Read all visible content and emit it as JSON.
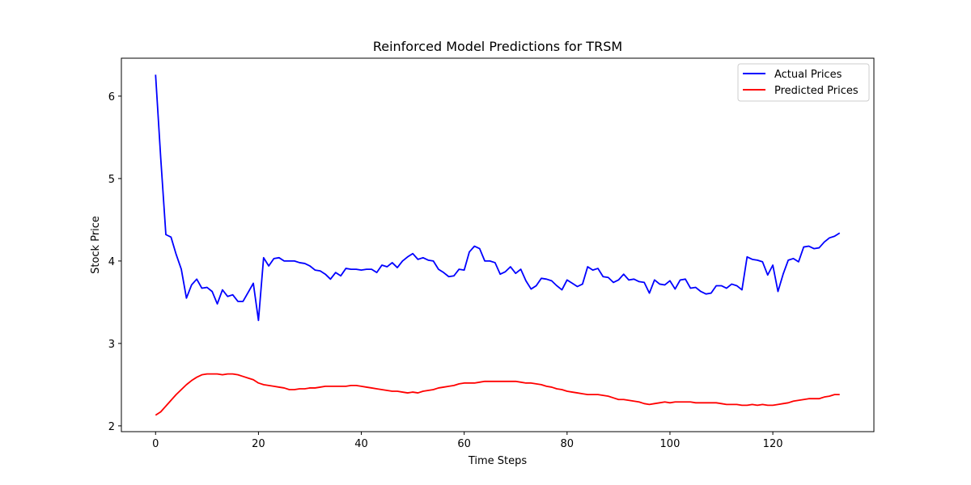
{
  "chart_data": {
    "type": "line",
    "title": "Reinforced Model Predictions for TRSM",
    "xlabel": "Time Steps",
    "ylabel": "Stock Price",
    "xlim": [
      -6.65,
      139.65
    ],
    "ylim": [
      1.93,
      6.46
    ],
    "xticks": [
      0,
      20,
      40,
      60,
      80,
      100,
      120
    ],
    "yticks": [
      2,
      3,
      4,
      5,
      6
    ],
    "grid": false,
    "legend_position": "top-right",
    "series": [
      {
        "name": "Actual Prices",
        "color": "#0000ff",
        "values": [
          6.26,
          5.25,
          4.32,
          4.29,
          4.08,
          3.9,
          3.55,
          3.71,
          3.78,
          3.67,
          3.68,
          3.63,
          3.48,
          3.65,
          3.57,
          3.59,
          3.51,
          3.51,
          3.62,
          3.73,
          3.28,
          4.04,
          3.94,
          4.03,
          4.04,
          4.0,
          4.0,
          4.0,
          3.98,
          3.97,
          3.94,
          3.89,
          3.88,
          3.84,
          3.78,
          3.86,
          3.82,
          3.91,
          3.9,
          3.9,
          3.89,
          3.9,
          3.9,
          3.86,
          3.95,
          3.93,
          3.98,
          3.92,
          4.0,
          4.05,
          4.09,
          4.02,
          4.04,
          4.01,
          4.0,
          3.9,
          3.86,
          3.81,
          3.82,
          3.9,
          3.89,
          4.11,
          4.18,
          4.15,
          4.0,
          4.0,
          3.98,
          3.84,
          3.87,
          3.93,
          3.85,
          3.9,
          3.76,
          3.66,
          3.7,
          3.79,
          3.78,
          3.76,
          3.7,
          3.65,
          3.77,
          3.73,
          3.69,
          3.72,
          3.93,
          3.89,
          3.91,
          3.81,
          3.8,
          3.74,
          3.77,
          3.84,
          3.77,
          3.78,
          3.75,
          3.74,
          3.61,
          3.77,
          3.72,
          3.71,
          3.76,
          3.66,
          3.77,
          3.78,
          3.67,
          3.68,
          3.63,
          3.6,
          3.61,
          3.7,
          3.7,
          3.67,
          3.72,
          3.7,
          3.65,
          4.05,
          4.02,
          4.01,
          3.99,
          3.83,
          3.95,
          3.63,
          3.84,
          4.01,
          4.03,
          3.99,
          4.17,
          4.18,
          4.15,
          4.16,
          4.23,
          4.28,
          4.3,
          4.34
        ]
      },
      {
        "name": "Predicted Prices",
        "color": "#ff0000",
        "values": [
          2.13,
          2.17,
          2.24,
          2.31,
          2.38,
          2.44,
          2.5,
          2.55,
          2.59,
          2.62,
          2.63,
          2.63,
          2.63,
          2.62,
          2.63,
          2.63,
          2.62,
          2.6,
          2.58,
          2.56,
          2.52,
          2.5,
          2.49,
          2.48,
          2.47,
          2.46,
          2.44,
          2.44,
          2.45,
          2.45,
          2.46,
          2.46,
          2.47,
          2.48,
          2.48,
          2.48,
          2.48,
          2.48,
          2.49,
          2.49,
          2.48,
          2.47,
          2.46,
          2.45,
          2.44,
          2.43,
          2.42,
          2.42,
          2.41,
          2.4,
          2.41,
          2.4,
          2.42,
          2.43,
          2.44,
          2.46,
          2.47,
          2.48,
          2.49,
          2.51,
          2.52,
          2.52,
          2.52,
          2.53,
          2.54,
          2.54,
          2.54,
          2.54,
          2.54,
          2.54,
          2.54,
          2.53,
          2.52,
          2.52,
          2.51,
          2.5,
          2.48,
          2.47,
          2.45,
          2.44,
          2.42,
          2.41,
          2.4,
          2.39,
          2.38,
          2.38,
          2.38,
          2.37,
          2.36,
          2.34,
          2.32,
          2.32,
          2.31,
          2.3,
          2.29,
          2.27,
          2.26,
          2.27,
          2.28,
          2.29,
          2.28,
          2.29,
          2.29,
          2.29,
          2.29,
          2.28,
          2.28,
          2.28,
          2.28,
          2.28,
          2.27,
          2.26,
          2.26,
          2.26,
          2.25,
          2.25,
          2.26,
          2.25,
          2.26,
          2.25,
          2.25,
          2.26,
          2.27,
          2.28,
          2.3,
          2.31,
          2.32,
          2.33,
          2.33,
          2.33,
          2.35,
          2.36,
          2.38,
          2.38
        ]
      }
    ]
  }
}
